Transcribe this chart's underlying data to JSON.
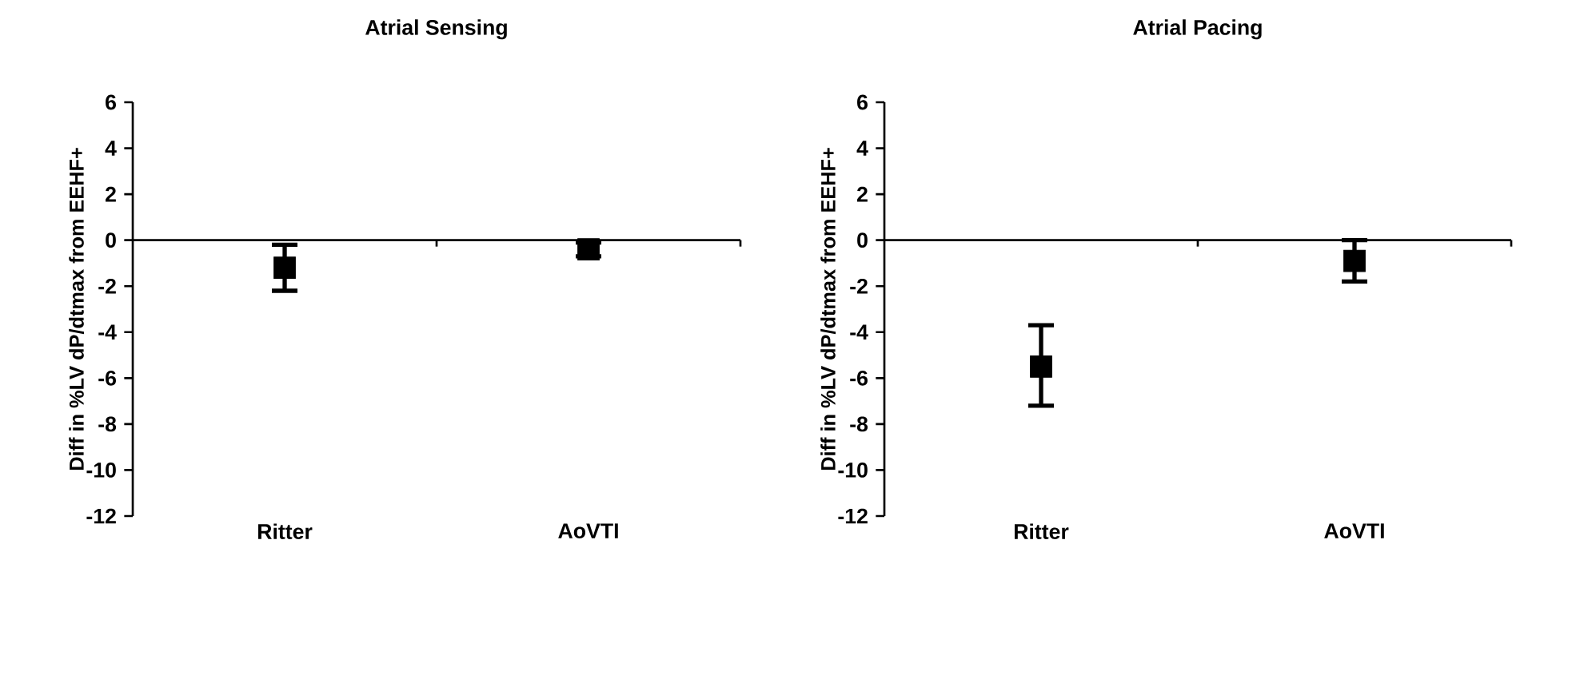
{
  "chart_data": [
    {
      "type": "scatter",
      "title": "Atrial Sensing",
      "ylabel": "Diff in %LV dP/dtmax from EEHF+",
      "categories": [
        "Ritter",
        "AoVTI"
      ],
      "values": [
        -1.2,
        -0.4
      ],
      "errors": [
        [
          -2.2,
          -0.2
        ],
        [
          -0.7,
          -0.1
        ]
      ],
      "color": "#000000",
      "marker": "square",
      "ylim": [
        -12,
        6
      ],
      "yticks": [
        -12,
        -10,
        -8,
        -6,
        -4,
        -2,
        0,
        2,
        4,
        6
      ],
      "ref_lines": [
        {
          "axis": "y",
          "value": 0,
          "color": "#000000"
        }
      ]
    },
    {
      "type": "scatter",
      "title": "Atrial Pacing",
      "ylabel": "Diff in %LV dP/dtmax from EEHF+",
      "categories": [
        "Ritter",
        "AoVTI"
      ],
      "values": [
        -5.5,
        -0.9
      ],
      "errors": [
        [
          -7.2,
          -3.7
        ],
        [
          -1.8,
          0
        ]
      ],
      "color": "#000000",
      "marker": "square",
      "ylim": [
        -12,
        6
      ],
      "yticks": [
        -12,
        -10,
        -8,
        -6,
        -4,
        -2,
        0,
        2,
        4,
        6
      ],
      "ref_lines": [
        {
          "axis": "y",
          "value": 0,
          "color": "#000000"
        }
      ]
    }
  ]
}
